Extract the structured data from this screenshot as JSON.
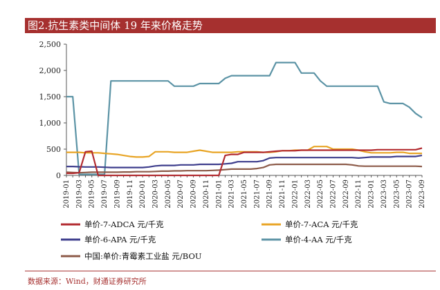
{
  "title": "图2.抗生素类中间体 19 年来价格走势",
  "source": "数据来源：Wind，财通证券研究所",
  "chart_data": {
    "type": "line",
    "title": "图2.抗生素类中间体 19 年来价格走势",
    "xlabel": "",
    "ylabel": "",
    "ylim": [
      0,
      2500
    ],
    "y_ticks": [
      "0",
      "500",
      "1,000",
      "1,500",
      "2,000",
      "2,500"
    ],
    "y_tick_values": [
      0,
      500,
      1000,
      1500,
      2000,
      2500
    ],
    "x": [
      "2019-01",
      "2019-02",
      "2019-03",
      "2019-04",
      "2019-05",
      "2019-06",
      "2019-07",
      "2019-08",
      "2019-09",
      "2019-10",
      "2019-11",
      "2019-12",
      "2020-01",
      "2020-02",
      "2020-03",
      "2020-04",
      "2020-05",
      "2020-06",
      "2020-07",
      "2020-08",
      "2020-09",
      "2020-10",
      "2020-11",
      "2020-12",
      "2021-01",
      "2021-02",
      "2021-03",
      "2021-04",
      "2021-05",
      "2021-06",
      "2021-07",
      "2021-08",
      "2021-09",
      "2021-10",
      "2021-11",
      "2021-12",
      "2022-01",
      "2022-02",
      "2022-03",
      "2022-04",
      "2022-05",
      "2022-06",
      "2022-07",
      "2022-08",
      "2022-09",
      "2022-10",
      "2022-11",
      "2022-12",
      "2023-01",
      "2023-02",
      "2023-03",
      "2023-04",
      "2023-05",
      "2023-06",
      "2023-07",
      "2023-08",
      "2023-09"
    ],
    "x_tick_labels": [
      "2019-01",
      "2019-03",
      "2019-05",
      "2019-07",
      "2019-09",
      "2019-11",
      "2020-01",
      "2020-03",
      "2020-05",
      "2020-07",
      "2020-09",
      "2020-11",
      "2021-01",
      "2021-03",
      "2021-05",
      "2021-07",
      "2021-09",
      "2021-11",
      "2022-01",
      "2022-03",
      "2022-05",
      "2022-07",
      "2022-09",
      "2022-11",
      "2023-01",
      "2023-03",
      "2023-05",
      "2023-07",
      "2023-09"
    ],
    "grid": false,
    "legend_position": "bottom",
    "series": [
      {
        "name": "单价-7-ADCA 元/千克",
        "color": "#b22a2f",
        "values": [
          40,
          40,
          50,
          450,
          460,
          0,
          0,
          0,
          0,
          0,
          0,
          0,
          0,
          0,
          0,
          0,
          0,
          0,
          0,
          0,
          0,
          0,
          0,
          0,
          0,
          380,
          400,
          400,
          440,
          440,
          440,
          440,
          450,
          460,
          470,
          470,
          470,
          480,
          480,
          480,
          480,
          480,
          480,
          480,
          480,
          480,
          480,
          480,
          480,
          490,
          490,
          490,
          490,
          490,
          490,
          490,
          520
        ]
      },
      {
        "name": "单价-7-ACA 元/千克",
        "color": "#e8a424",
        "values": [
          440,
          440,
          440,
          430,
          430,
          430,
          420,
          410,
          400,
          380,
          360,
          350,
          350,
          360,
          450,
          450,
          450,
          440,
          440,
          440,
          460,
          480,
          460,
          440,
          440,
          440,
          440,
          450,
          450,
          450,
          450,
          440,
          440,
          450,
          470,
          470,
          480,
          480,
          480,
          550,
          550,
          550,
          500,
          500,
          500,
          500,
          480,
          450,
          430,
          430,
          430,
          430,
          440,
          440,
          420,
          420,
          420
        ]
      },
      {
        "name": "单价-6-APA 元/千克",
        "color": "#3d3d8c",
        "values": [
          170,
          170,
          165,
          160,
          160,
          160,
          155,
          150,
          150,
          150,
          150,
          150,
          150,
          160,
          180,
          190,
          190,
          190,
          200,
          200,
          200,
          210,
          210,
          210,
          210,
          220,
          230,
          260,
          260,
          260,
          260,
          280,
          330,
          340,
          340,
          340,
          340,
          340,
          340,
          340,
          340,
          340,
          340,
          340,
          340,
          340,
          330,
          340,
          350,
          350,
          350,
          350,
          360,
          360,
          360,
          360,
          380
        ]
      },
      {
        "name": "单价-4-AA 元/千克",
        "color": "#5b93a5",
        "values": [
          1500,
          1500,
          20,
          20,
          20,
          20,
          20,
          1800,
          1800,
          1800,
          1800,
          1800,
          1800,
          1800,
          1800,
          1800,
          1800,
          1700,
          1700,
          1700,
          1700,
          1750,
          1750,
          1750,
          1750,
          1850,
          1900,
          1900,
          1900,
          1900,
          1900,
          1900,
          1900,
          2150,
          2150,
          2150,
          2150,
          1950,
          1950,
          1950,
          1800,
          1700,
          1700,
          1700,
          1700,
          1700,
          1700,
          1700,
          1700,
          1700,
          1400,
          1370,
          1370,
          1370,
          1300,
          1180,
          1100
        ]
      },
      {
        "name": "中国:单价:青霉素工业盐 元/BOU",
        "color": "#8c5a48",
        "values": [
          60,
          55,
          50,
          55,
          60,
          60,
          60,
          60,
          60,
          65,
          65,
          70,
          70,
          70,
          75,
          80,
          80,
          85,
          85,
          90,
          90,
          90,
          90,
          95,
          100,
          110,
          120,
          120,
          120,
          120,
          130,
          150,
          200,
          210,
          210,
          210,
          210,
          210,
          210,
          210,
          210,
          210,
          210,
          210,
          210,
          200,
          180,
          175,
          175,
          175,
          175,
          175,
          175,
          175,
          175,
          175,
          170
        ]
      }
    ]
  }
}
